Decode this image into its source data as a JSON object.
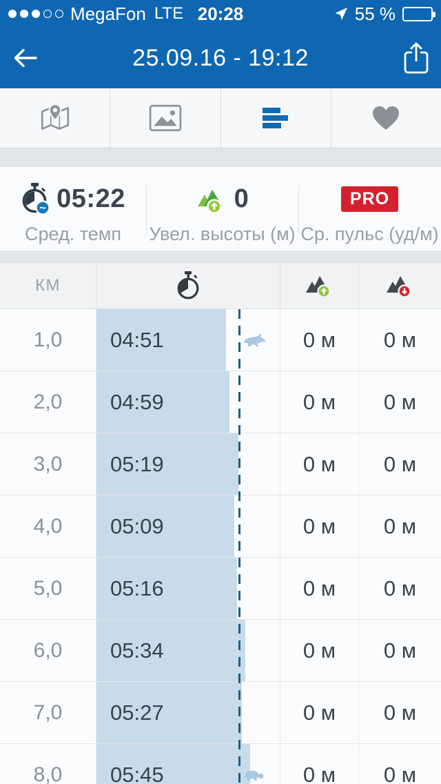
{
  "status_bar": {
    "carrier": "MegaFon",
    "network": "LTE",
    "time": "20:28",
    "battery": "55 %",
    "signal_filled_dots": 3,
    "signal_total_dots": 5
  },
  "nav": {
    "title": "25.09.16 - 19:12"
  },
  "tabs": [
    {
      "id": "map",
      "icon": "map-icon",
      "active": false
    },
    {
      "id": "photos",
      "icon": "photo-icon",
      "active": false
    },
    {
      "id": "splits",
      "icon": "splits-bars-icon",
      "active": true
    },
    {
      "id": "favorite",
      "icon": "heart-icon",
      "active": false
    }
  ],
  "stats": [
    {
      "icon": "pace-stopwatch-icon",
      "value": "05:22",
      "label": "Сред. темп"
    },
    {
      "icon": "elevation-gain-icon",
      "value": "0",
      "label": "Увел. высоты (м)"
    },
    {
      "badge": "PRO",
      "label": "Ср. пульс (уд/м)"
    }
  ],
  "splits_table": {
    "km_header": "КМ",
    "avg_pace": "05:22",
    "avg_pace_seconds": 322,
    "rows": [
      {
        "km": "1,0",
        "pace": "04:51",
        "pace_seconds": 291,
        "gain": "0 м",
        "loss": "0 м",
        "marker": "rabbit"
      },
      {
        "km": "2,0",
        "pace": "04:59",
        "pace_seconds": 299,
        "gain": "0 м",
        "loss": "0 м",
        "marker": null
      },
      {
        "km": "3,0",
        "pace": "05:19",
        "pace_seconds": 319,
        "gain": "0 м",
        "loss": "0 м",
        "marker": null
      },
      {
        "km": "4,0",
        "pace": "05:09",
        "pace_seconds": 309,
        "gain": "0 м",
        "loss": "0 м",
        "marker": null
      },
      {
        "km": "5,0",
        "pace": "05:16",
        "pace_seconds": 316,
        "gain": "0 м",
        "loss": "0 м",
        "marker": null
      },
      {
        "km": "6,0",
        "pace": "05:34",
        "pace_seconds": 334,
        "gain": "0 м",
        "loss": "0 м",
        "marker": null
      },
      {
        "km": "7,0",
        "pace": "05:27",
        "pace_seconds": 327,
        "gain": "0 м",
        "loss": "0 м",
        "marker": null
      },
      {
        "km": "8,0",
        "pace": "05:45",
        "pace_seconds": 345,
        "gain": "0 м",
        "loss": "0 м",
        "marker": "turtle"
      }
    ]
  },
  "chart_data": {
    "type": "bar",
    "orientation": "horizontal",
    "categories": [
      "1,0",
      "2,0",
      "3,0",
      "4,0",
      "5,0",
      "6,0",
      "7,0",
      "8,0"
    ],
    "values_seconds": [
      291,
      299,
      319,
      309,
      316,
      334,
      327,
      345
    ],
    "values_labels": [
      "04:51",
      "04:59",
      "05:19",
      "05:09",
      "05:16",
      "05:34",
      "05:27",
      "05:45"
    ],
    "average_seconds": 322,
    "average_label": "05:22",
    "fastest_marker": "rabbit",
    "slowest_marker": "turtle"
  },
  "colors": {
    "accent_blue": "#0F67B1",
    "bar_fill": "#C8DBEB",
    "avg_line": "#1D5F80",
    "pro_red": "#D5212E",
    "gain_green": "#8CC63E",
    "loss_red": "#D5232F"
  }
}
